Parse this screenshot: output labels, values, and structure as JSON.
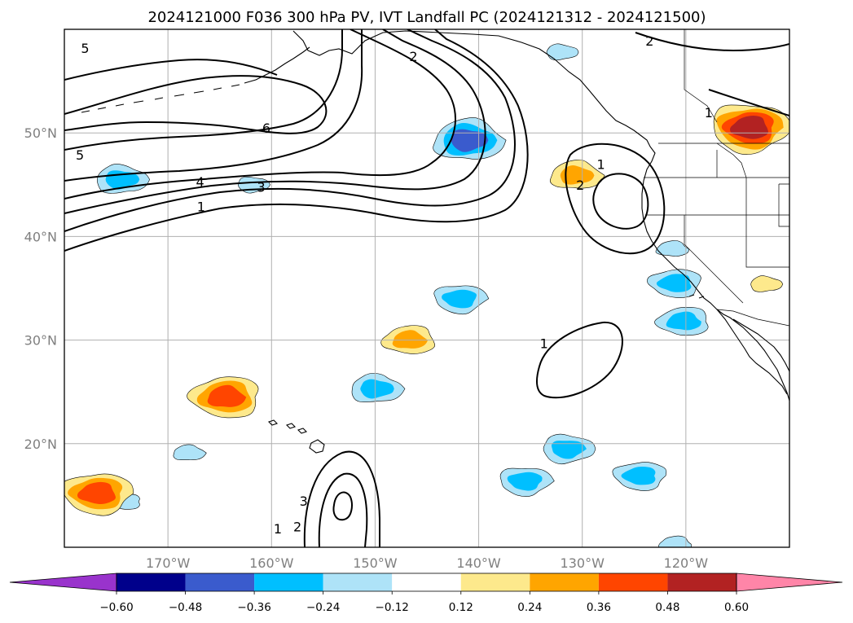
{
  "title": "2024121000 F036 300 hPa PV, IVT Landfall PC (2024121312 - 2024121500)",
  "map": {
    "lon_range": [
      -180,
      -110
    ],
    "lat_range": [
      10,
      60
    ],
    "lon_ticks": [
      {
        "lon": -170,
        "label": "170°W"
      },
      {
        "lon": -160,
        "label": "160°W"
      },
      {
        "lon": -150,
        "label": "150°W"
      },
      {
        "lon": -140,
        "label": "140°W"
      },
      {
        "lon": -130,
        "label": "130°W"
      },
      {
        "lon": -120,
        "label": "120°W"
      }
    ],
    "lat_ticks": [
      {
        "lat": 50,
        "label": "50°N"
      },
      {
        "lat": 40,
        "label": "40°N"
      },
      {
        "lat": 30,
        "label": "30°N"
      },
      {
        "lat": 20,
        "label": "20°N"
      }
    ]
  },
  "colorbar": {
    "colors": [
      "#9933cc",
      "#00008b",
      "#3a5bcd",
      "#00bfff",
      "#aee3f8",
      "#ffffff",
      "#fde98c",
      "#ffa500",
      "#ff4500",
      "#b22222",
      "#ff85a8"
    ],
    "tick_labels": [
      "−0.60",
      "−0.48",
      "−0.36",
      "−0.24",
      "−0.12",
      "0.12",
      "0.24",
      "0.36",
      "0.48",
      "0.60"
    ]
  },
  "contour_labels": [
    {
      "text": "5",
      "lon": -178,
      "lat": 58.2
    },
    {
      "text": "5",
      "lon": -178.5,
      "lat": 47.9
    },
    {
      "text": "6",
      "lon": -160.5,
      "lat": 50.5
    },
    {
      "text": "4",
      "lon": -166.9,
      "lat": 45.3
    },
    {
      "text": "3",
      "lon": -161.0,
      "lat": 44.8
    },
    {
      "text": "1",
      "lon": -166.8,
      "lat": 42.9
    },
    {
      "text": "2",
      "lon": -146.3,
      "lat": 57.4
    },
    {
      "text": "2",
      "lon": -123.5,
      "lat": 58.9
    },
    {
      "text": "1",
      "lon": -117.8,
      "lat": 52.0
    },
    {
      "text": "1",
      "lon": -128.2,
      "lat": 47.0
    },
    {
      "text": "2",
      "lon": -130.2,
      "lat": 45.0
    },
    {
      "text": "1",
      "lon": -133.7,
      "lat": 29.7
    },
    {
      "text": "3",
      "lon": -156.9,
      "lat": 14.5
    },
    {
      "text": "2",
      "lon": -157.5,
      "lat": 12.0
    },
    {
      "text": "1",
      "lon": -159.4,
      "lat": 11.8
    }
  ],
  "pv_anomaly_areas": [
    {
      "sign": "negative",
      "levels": 3,
      "lon": -141,
      "lat": 49.3
    },
    {
      "sign": "negative",
      "levels": 2,
      "lon": -174.5,
      "lat": 45.5
    },
    {
      "sign": "negative",
      "levels": 1,
      "lon": -161.8,
      "lat": 45.0
    },
    {
      "sign": "negative",
      "levels": 2,
      "lon": -141.8,
      "lat": 34.0
    },
    {
      "sign": "negative",
      "levels": 2,
      "lon": -121.0,
      "lat": 35.5
    },
    {
      "sign": "negative",
      "levels": 2,
      "lon": -120.2,
      "lat": 31.8
    },
    {
      "sign": "negative",
      "levels": 1,
      "lon": -121.3,
      "lat": 38.8
    },
    {
      "sign": "negative",
      "levels": 2,
      "lon": -149.9,
      "lat": 25.3
    },
    {
      "sign": "negative",
      "levels": 2,
      "lon": -131.4,
      "lat": 19.5
    },
    {
      "sign": "negative",
      "levels": 2,
      "lon": -135.5,
      "lat": 16.4
    },
    {
      "sign": "negative",
      "levels": 2,
      "lon": -124.4,
      "lat": 16.9
    },
    {
      "sign": "negative",
      "levels": 1,
      "lon": -174.1,
      "lat": 14.4
    },
    {
      "sign": "negative",
      "levels": 1,
      "lon": -121.0,
      "lat": 10.3
    },
    {
      "sign": "negative",
      "levels": 1,
      "lon": -168.0,
      "lat": 19.1
    },
    {
      "sign": "negative",
      "levels": 1,
      "lon": -132.0,
      "lat": 57.8
    },
    {
      "sign": "positive",
      "levels": 4,
      "lon": -113.8,
      "lat": 50.5
    },
    {
      "sign": "positive",
      "levels": 3,
      "lon": -176.8,
      "lat": 15.2
    },
    {
      "sign": "positive",
      "levels": 3,
      "lon": -164.4,
      "lat": 24.5
    },
    {
      "sign": "positive",
      "levels": 2,
      "lon": -146.7,
      "lat": 30.0
    },
    {
      "sign": "positive",
      "levels": 2,
      "lon": -130.6,
      "lat": 45.9
    },
    {
      "sign": "positive",
      "levels": 1,
      "lon": -112.3,
      "lat": 35.4
    }
  ]
}
